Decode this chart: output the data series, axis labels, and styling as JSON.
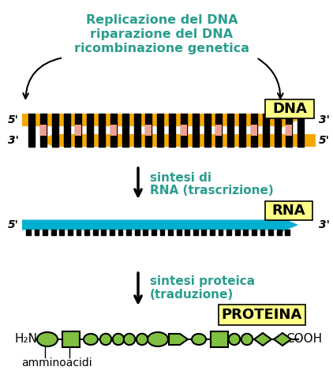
{
  "bg_color": "#ffffff",
  "teal_color": "#2a9d8f",
  "black_color": "#000000",
  "yellow_bg": "#ffff88",
  "orange_color": "#f5a800",
  "blue_color": "#00b0d0",
  "green_color": "#80c040",
  "pink_color": "#f0a090",
  "top_text_line1": "Replicazione del DNA",
  "top_text_line2": "riparazione del DNA",
  "top_text_line3": "ricombinazione genetica",
  "label_dna": "DNA",
  "label_rna": "RNA",
  "label_proteina": "PROTEINA",
  "text_trascrizione_1": "sintesi di",
  "text_trascrizione_2": "RNA (trascrizione)",
  "text_traduzione_1": "sintesi proteica",
  "text_traduzione_2": "(traduzione)",
  "label_5prime_top": "5'",
  "label_3prime_top": "3'",
  "label_3prime_bot": "3'",
  "label_5prime_bot": "5'",
  "label_5prime_rna": "5'",
  "label_3prime_rna": "3'",
  "label_h2n": "H₂N",
  "label_cooh": "COOH",
  "label_amminoacidi": "amminoacidi",
  "figsize": [
    4.22,
    4.93
  ],
  "dpi": 100
}
